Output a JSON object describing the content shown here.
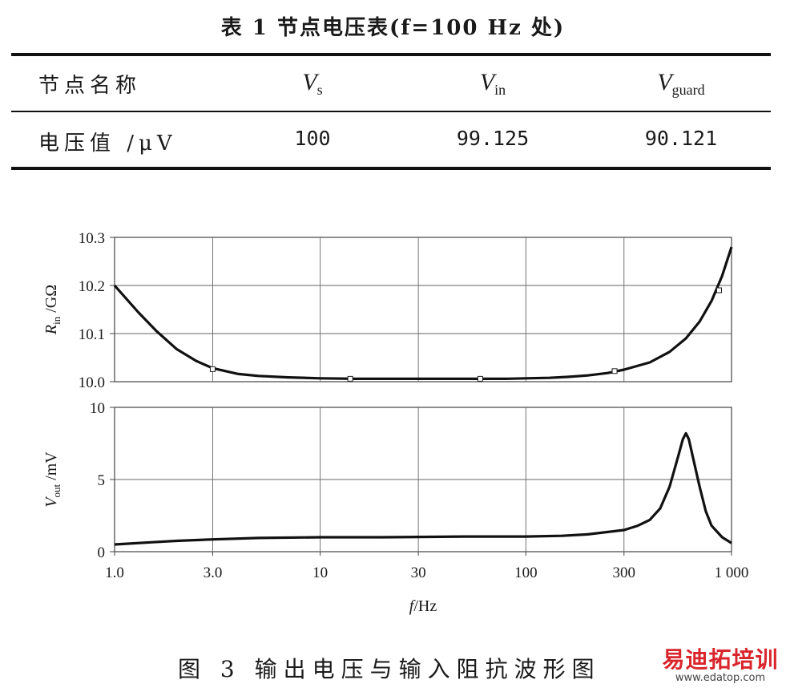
{
  "table": {
    "title": "表 1   节点电压表(f=100 Hz 处)",
    "headers": [
      "节点名称",
      "V",
      "V",
      "V"
    ],
    "header_subs": [
      "",
      "s",
      "in",
      "guard"
    ],
    "row_label": "电压值 /μV",
    "values": [
      "100",
      "99.125",
      "90.121"
    ]
  },
  "chart_data": [
    {
      "type": "line",
      "ylabel": "Rin /GΩ",
      "xlabel": "f/Hz",
      "xscale": "log",
      "xlim": [
        1,
        1000
      ],
      "ylim": [
        10.0,
        10.3
      ],
      "grid": true,
      "xticks": [
        1,
        3,
        10,
        30,
        100,
        300,
        1000
      ],
      "xtick_labels": [
        "1.0",
        "3.0",
        "10",
        "30",
        "100",
        "300",
        "1 000"
      ],
      "yticks": [
        10.0,
        10.1,
        10.2,
        10.3
      ],
      "ytick_labels": [
        "10.0",
        "10.1",
        "10.2",
        "10.3"
      ],
      "series": [
        {
          "x": [
            1,
            1.3,
            1.6,
            2,
            2.5,
            3,
            4,
            5,
            7,
            10,
            15,
            20,
            30,
            40,
            60,
            80,
            100,
            130,
            160,
            200,
            250,
            300,
            400,
            500,
            600,
            700,
            800,
            900,
            1000
          ],
          "values": [
            10.2,
            10.145,
            10.105,
            10.068,
            10.043,
            10.028,
            10.016,
            10.012,
            10.009,
            10.007,
            10.006,
            10.006,
            10.006,
            10.006,
            10.006,
            10.006,
            10.007,
            10.008,
            10.01,
            10.013,
            10.018,
            10.025,
            10.04,
            10.062,
            10.09,
            10.125,
            10.168,
            10.22,
            10.28
          ]
        }
      ],
      "markers": {
        "x": [
          3,
          14,
          60,
          270,
          870
        ],
        "values": [
          10.026,
          10.006,
          10.006,
          10.022,
          10.19
        ]
      }
    },
    {
      "type": "line",
      "ylabel": "Vout /mV",
      "xlabel": "f/Hz",
      "xscale": "log",
      "xlim": [
        1,
        1000
      ],
      "ylim": [
        0,
        10
      ],
      "grid": true,
      "xticks": [
        1,
        3,
        10,
        30,
        100,
        300,
        1000
      ],
      "xtick_labels": [
        "1.0",
        "3.0",
        "10",
        "30",
        "100",
        "300",
        "1 000"
      ],
      "yticks": [
        0,
        5,
        10
      ],
      "ytick_labels": [
        "0",
        "5",
        "10"
      ],
      "series": [
        {
          "x": [
            1,
            1.5,
            2,
            3,
            5,
            10,
            20,
            50,
            100,
            150,
            200,
            300,
            350,
            400,
            450,
            500,
            550,
            580,
            600,
            620,
            650,
            700,
            750,
            800,
            900,
            1000
          ],
          "values": [
            0.5,
            0.65,
            0.75,
            0.85,
            0.95,
            1.0,
            1.0,
            1.05,
            1.05,
            1.1,
            1.2,
            1.5,
            1.8,
            2.2,
            3.0,
            4.5,
            6.6,
            7.8,
            8.2,
            7.8,
            6.5,
            4.5,
            2.8,
            1.8,
            1.0,
            0.6
          ]
        }
      ]
    }
  ],
  "figure": {
    "caption": "图 3   输出电压与输入阻抗波形图"
  },
  "watermark": {
    "logo": "易迪拓培训",
    "url": "www.edatop.com"
  }
}
